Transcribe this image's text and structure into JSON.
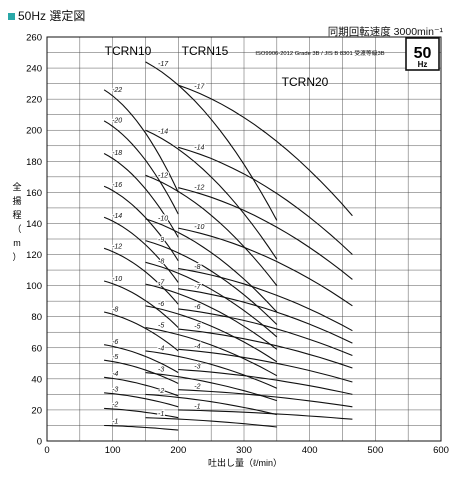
{
  "header": {
    "marker_color": "#2aa8a8",
    "title": "50Hz  選定図",
    "speed_label": "同期回転速度 3000min⁻¹",
    "badge_value": "50",
    "badge_unit": "Hz",
    "standard_note": "ISO9906-2012  Grade 3B / JIS B 8301 受渡等級3B"
  },
  "chart_data": {
    "type": "line",
    "xlabel": "吐出し量（ℓ/min）",
    "ylabel": "全揚程（m）",
    "xlim": [
      0,
      600
    ],
    "ylim": [
      0,
      260
    ],
    "xticks": [
      "0",
      "100",
      "200",
      "300",
      "400",
      "500",
      "600"
    ],
    "yticks": [
      "0",
      "20",
      "40",
      "60",
      "80",
      "100",
      "120",
      "140",
      "160",
      "180",
      "200",
      "220",
      "240",
      "260"
    ],
    "grid": true,
    "model_labels": [
      "TCRN10",
      "TCRN15",
      "TCRN20"
    ],
    "series": [
      {
        "model": "TCRN10",
        "x_range": [
          87,
          200
        ],
        "points": [
          {
            "name": "-22",
            "h0": 226,
            "h1": 160
          },
          {
            "name": "-20",
            "h0": 206,
            "h1": 146
          },
          {
            "name": "-18",
            "h0": 185,
            "h1": 131
          },
          {
            "name": "-16",
            "h0": 164,
            "h1": 116
          },
          {
            "name": "-14",
            "h0": 144,
            "h1": 102
          },
          {
            "name": "-12",
            "h0": 124,
            "h1": 88
          },
          {
            "name": "-10",
            "h0": 103,
            "h1": 73
          },
          {
            "name": "-8",
            "h0": 83,
            "h1": 58
          },
          {
            "name": "-6",
            "h0": 62,
            "h1": 44
          },
          {
            "name": "-5",
            "h0": 52,
            "h1": 37
          },
          {
            "name": "-4",
            "h0": 41,
            "h1": 29
          },
          {
            "name": "-3",
            "h0": 31,
            "h1": 22
          },
          {
            "name": "-2",
            "h0": 21,
            "h1": 15
          },
          {
            "name": "-1",
            "h0": 10,
            "h1": 7
          }
        ]
      },
      {
        "model": "TCRN15",
        "x_range": [
          150,
          350
        ],
        "points": [
          {
            "name": "-17",
            "h0": 244,
            "h1": 142
          },
          {
            "name": "-14",
            "h0": 200,
            "h1": 117
          },
          {
            "name": "-12",
            "h0": 171,
            "h1": 100
          },
          {
            "name": "-10",
            "h0": 143,
            "h1": 83
          },
          {
            "name": "-9",
            "h0": 129,
            "h1": 75
          },
          {
            "name": "-8",
            "h0": 115,
            "h1": 67
          },
          {
            "name": "-7",
            "h0": 101,
            "h1": 59
          },
          {
            "name": "-6",
            "h0": 87,
            "h1": 51
          },
          {
            "name": "-5",
            "h0": 73,
            "h1": 42
          },
          {
            "name": "-4",
            "h0": 58,
            "h1": 34
          },
          {
            "name": "-3",
            "h0": 44,
            "h1": 26
          },
          {
            "name": "-2",
            "h0": 30,
            "h1": 17
          },
          {
            "name": "-1",
            "h0": 15,
            "h1": 9
          }
        ]
      },
      {
        "model": "TCRN20",
        "x_range": [
          200,
          465
        ],
        "points": [
          {
            "name": "-17",
            "h0": 229,
            "h1": 145
          },
          {
            "name": "-14",
            "h0": 189,
            "h1": 120
          },
          {
            "name": "-12",
            "h0": 163,
            "h1": 104
          },
          {
            "name": "-10",
            "h0": 137,
            "h1": 87
          },
          {
            "name": "-8",
            "h0": 111,
            "h1": 71
          },
          {
            "name": "-7",
            "h0": 98,
            "h1": 63
          },
          {
            "name": "-6",
            "h0": 85,
            "h1": 55
          },
          {
            "name": "-5",
            "h0": 72,
            "h1": 47
          },
          {
            "name": "-4",
            "h0": 59,
            "h1": 38
          },
          {
            "name": "-3",
            "h0": 46,
            "h1": 30
          },
          {
            "name": "-2",
            "h0": 33,
            "h1": 22
          },
          {
            "name": "-1",
            "h0": 20,
            "h1": 14
          }
        ]
      }
    ]
  }
}
